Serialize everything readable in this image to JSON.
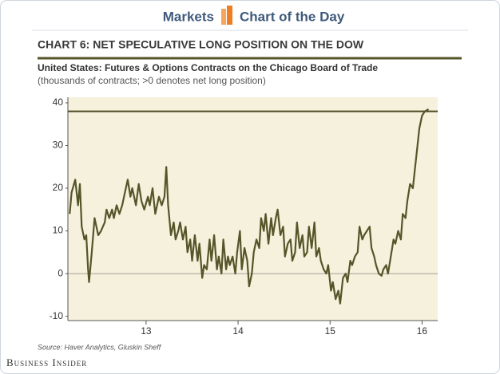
{
  "header": {
    "left": "Markets",
    "right": "Chart of the Day"
  },
  "chart_data": {
    "type": "line",
    "title": "CHART 6: NET SPECULATIVE LONG POSITION ON THE DOW",
    "subtitle": "United States: Futures & Options Contracts on the Chicago Board of Trade",
    "note": "(thousands of contracts; >0 denotes net long position)",
    "source": "Source: Haver Analytics, Gluskin Sheff",
    "brand": "Business Insider",
    "xlim": [
      12.15,
      16.17
    ],
    "xticks": [
      13,
      14,
      15,
      16
    ],
    "ylim": [
      -11,
      41.3
    ],
    "yticks": [
      -10,
      0,
      10,
      20,
      30,
      40
    ],
    "reference_line": 38,
    "color": "#55552a",
    "x": [
      12.17,
      12.19,
      12.23,
      12.26,
      12.28,
      12.3,
      12.33,
      12.35,
      12.37,
      12.38,
      12.41,
      12.44,
      12.48,
      12.51,
      12.55,
      12.57,
      12.6,
      12.63,
      12.65,
      12.68,
      12.71,
      12.74,
      12.77,
      12.8,
      12.83,
      12.85,
      12.89,
      12.92,
      12.95,
      12.98,
      13.02,
      13.04,
      13.07,
      13.1,
      13.14,
      13.17,
      13.2,
      13.22,
      13.24,
      13.27,
      13.3,
      13.32,
      13.35,
      13.37,
      13.4,
      13.43,
      13.45,
      13.48,
      13.5,
      13.53,
      13.56,
      13.58,
      13.61,
      13.63,
      13.66,
      13.69,
      13.71,
      13.74,
      13.77,
      13.79,
      13.82,
      13.84,
      13.87,
      13.89,
      13.91,
      13.94,
      13.97,
      13.99,
      14.02,
      14.04,
      14.07,
      14.1,
      14.12,
      14.15,
      14.17,
      14.2,
      14.23,
      14.25,
      14.28,
      14.3,
      14.33,
      14.36,
      14.38,
      14.41,
      14.43,
      14.46,
      14.49,
      14.51,
      14.54,
      14.57,
      14.59,
      14.62,
      14.64,
      14.67,
      14.7,
      14.72,
      14.75,
      14.77,
      14.8,
      14.83,
      14.85,
      14.88,
      14.9,
      14.93,
      14.96,
      14.98,
      15.01,
      15.03,
      15.06,
      15.09,
      15.11,
      15.14,
      15.17,
      15.19,
      15.22,
      15.24,
      15.27,
      15.3,
      15.32,
      15.35,
      15.37,
      15.4,
      15.43,
      15.45,
      15.48,
      15.5,
      15.53,
      15.56,
      15.58,
      15.61,
      15.63,
      15.66,
      15.69,
      15.71,
      15.74,
      15.77,
      15.79,
      15.82,
      15.84,
      15.87,
      15.9,
      15.92,
      15.95,
      15.97,
      16.0,
      16.03,
      16.07
    ],
    "values": [
      14,
      19,
      22,
      16,
      21,
      11,
      8,
      9,
      1,
      -2,
      5,
      13,
      9,
      10,
      12,
      15,
      13,
      15,
      13,
      16,
      14,
      16,
      19,
      22,
      18,
      20,
      16,
      21,
      17,
      15,
      18,
      16,
      20,
      14,
      18,
      16,
      18,
      25,
      16,
      9,
      12,
      8,
      10,
      12,
      8,
      11,
      5,
      8,
      3,
      9,
      3,
      7,
      -1,
      2,
      1,
      8,
      3,
      9,
      1,
      4,
      0,
      8,
      1,
      4,
      2,
      4,
      0,
      5,
      10,
      1,
      6,
      3,
      -3,
      0,
      5,
      8,
      6,
      13,
      10,
      14,
      7,
      13,
      9,
      13,
      15,
      9,
      11,
      4,
      7,
      8,
      3,
      5,
      12,
      6,
      9,
      4,
      5,
      11,
      6,
      12,
      4,
      6,
      3,
      1,
      0,
      2,
      -4,
      -2,
      -6,
      -4,
      -7,
      -1,
      0,
      -2,
      3,
      2,
      4,
      5,
      11,
      8,
      9,
      10,
      11,
      6,
      4,
      2,
      0,
      -0.5,
      1,
      2,
      0,
      4,
      8,
      7,
      10,
      8,
      14,
      13,
      17,
      21,
      20,
      24,
      30,
      34,
      37,
      38,
      38.5
    ]
  }
}
